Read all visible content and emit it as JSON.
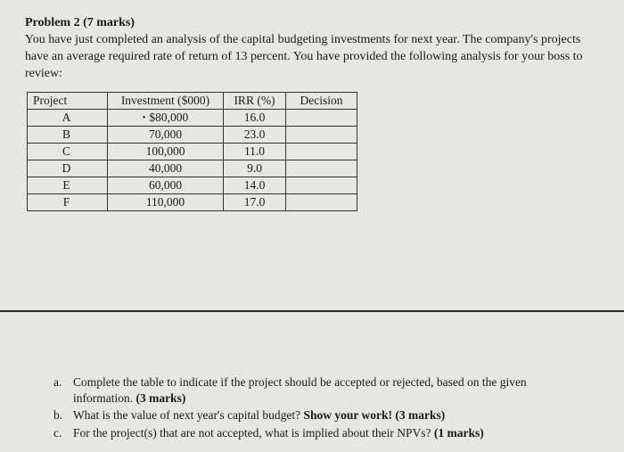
{
  "problem": {
    "title": "Problem 2 (7 marks)",
    "body": "You have just completed an analysis of the capital budgeting investments for next year. The company's projects have an average required rate of return of 13 percent. You have provided the following analysis for your boss to review:"
  },
  "table": {
    "headers": {
      "project": "Project",
      "investment": "Investment ($000)",
      "irr": "IRR (%)",
      "decision": "Decision"
    },
    "rows": [
      {
        "project": "A",
        "investment": "$80,000",
        "irr": "16.0",
        "decision": ""
      },
      {
        "project": "B",
        "investment": "70,000",
        "irr": "23.0",
        "decision": ""
      },
      {
        "project": "C",
        "investment": "100,000",
        "irr": "11.0",
        "decision": ""
      },
      {
        "project": "D",
        "investment": "40,000",
        "irr": "9.0",
        "decision": ""
      },
      {
        "project": "E",
        "investment": "60,000",
        "irr": "14.0",
        "decision": ""
      },
      {
        "project": "F",
        "investment": "110,000",
        "irr": "17.0",
        "decision": ""
      }
    ]
  },
  "questions": {
    "a": {
      "letter": "a.",
      "text_pre": "Complete the table to indicate if the project should be accepted or rejected, based on the given information. ",
      "marks": "(3 marks)"
    },
    "b": {
      "letter": "b.",
      "text_pre": "What is the value of next year's capital budget? ",
      "bold": "Show your work! (3 marks)"
    },
    "c": {
      "letter": "c.",
      "text_pre": "For the project(s) that are not accepted, what is implied about their NPVs? ",
      "marks": "(1 marks)"
    }
  }
}
